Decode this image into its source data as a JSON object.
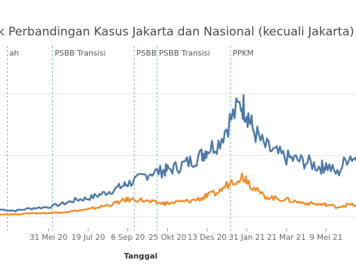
{
  "title": "fik Perbandingan Kasus Jakarta dan Nasional (kecuali Jakarta)",
  "chart_data": {
    "type": "line",
    "title": "fik Perbandingan Kasus Jakarta dan Nasional (kecuali Jakarta)",
    "xlabel": "Tanggal",
    "ylabel": "",
    "x_tick_labels": [
      "31 Mei 20",
      "19 Jul 20",
      "6 Sep 20",
      "25 Okt 20",
      "13 Des 20",
      "31 Jan 21",
      "21 Mar 21",
      "9 Mei 21"
    ],
    "grid": "horizontal",
    "phases": [
      {
        "label": "ah",
        "at": "2020-04-10"
      },
      {
        "label": "PSBB Transisi",
        "at": "2020-06-05"
      },
      {
        "label": "PSBB",
        "at": "2020-09-14"
      },
      {
        "label": "PSBB Transisi",
        "at": "2020-10-12"
      },
      {
        "label": "PPKM",
        "at": "2021-01-11"
      }
    ],
    "series": [
      {
        "color": "#4e79a7",
        "points": [
          [
            "2020-04-01",
            0.06
          ],
          [
            "2020-04-20",
            0.05
          ],
          [
            "2020-05-10",
            0.07
          ],
          [
            "2020-05-31",
            0.08
          ],
          [
            "2020-06-20",
            0.11
          ],
          [
            "2020-07-05",
            0.14
          ],
          [
            "2020-07-19",
            0.15
          ],
          [
            "2020-08-02",
            0.18
          ],
          [
            "2020-08-16",
            0.21
          ],
          [
            "2020-08-30",
            0.25
          ],
          [
            "2020-09-06",
            0.27
          ],
          [
            "2020-09-20",
            0.31
          ],
          [
            "2020-10-04",
            0.36
          ],
          [
            "2020-10-18",
            0.37
          ],
          [
            "2020-10-25",
            0.38
          ],
          [
            "2020-11-08",
            0.41
          ],
          [
            "2020-11-22",
            0.45
          ],
          [
            "2020-12-06",
            0.5
          ],
          [
            "2020-12-13",
            0.55
          ],
          [
            "2020-12-27",
            0.6
          ],
          [
            "2021-01-10",
            0.78
          ],
          [
            "2021-01-24",
            0.92
          ],
          [
            "2021-01-31",
            0.86
          ],
          [
            "2021-02-07",
            0.72
          ],
          [
            "2021-02-21",
            0.58
          ],
          [
            "2021-03-07",
            0.52
          ],
          [
            "2021-03-21",
            0.48
          ],
          [
            "2021-04-04",
            0.46
          ],
          [
            "2021-04-18",
            0.44
          ],
          [
            "2021-05-02",
            0.4
          ],
          [
            "2021-05-09",
            0.42
          ],
          [
            "2021-05-23",
            0.35
          ],
          [
            "2021-06-06",
            0.5
          ],
          [
            "2021-06-20",
            0.46
          ]
        ]
      },
      {
        "color": "#f28e2b",
        "points": [
          [
            "2020-04-01",
            0.02
          ],
          [
            "2020-04-20",
            0.02
          ],
          [
            "2020-05-10",
            0.03
          ],
          [
            "2020-05-31",
            0.03
          ],
          [
            "2020-06-20",
            0.04
          ],
          [
            "2020-07-05",
            0.05
          ],
          [
            "2020-07-19",
            0.06
          ],
          [
            "2020-08-02",
            0.08
          ],
          [
            "2020-08-16",
            0.1
          ],
          [
            "2020-08-30",
            0.13
          ],
          [
            "2020-09-06",
            0.14
          ],
          [
            "2020-09-20",
            0.14
          ],
          [
            "2020-10-04",
            0.12
          ],
          [
            "2020-10-18",
            0.11
          ],
          [
            "2020-10-25",
            0.11
          ],
          [
            "2020-11-08",
            0.12
          ],
          [
            "2020-11-22",
            0.13
          ],
          [
            "2020-12-06",
            0.15
          ],
          [
            "2020-12-13",
            0.17
          ],
          [
            "2020-12-27",
            0.2
          ],
          [
            "2021-01-10",
            0.28
          ],
          [
            "2021-01-24",
            0.33
          ],
          [
            "2021-01-31",
            0.31
          ],
          [
            "2021-02-07",
            0.24
          ],
          [
            "2021-02-21",
            0.17
          ],
          [
            "2021-03-07",
            0.15
          ],
          [
            "2021-03-21",
            0.14
          ],
          [
            "2021-04-04",
            0.12
          ],
          [
            "2021-04-18",
            0.11
          ],
          [
            "2021-05-02",
            0.1
          ],
          [
            "2021-05-09",
            0.1
          ],
          [
            "2021-05-23",
            0.08
          ],
          [
            "2021-06-06",
            0.1
          ],
          [
            "2021-06-20",
            0.09
          ]
        ]
      }
    ]
  }
}
